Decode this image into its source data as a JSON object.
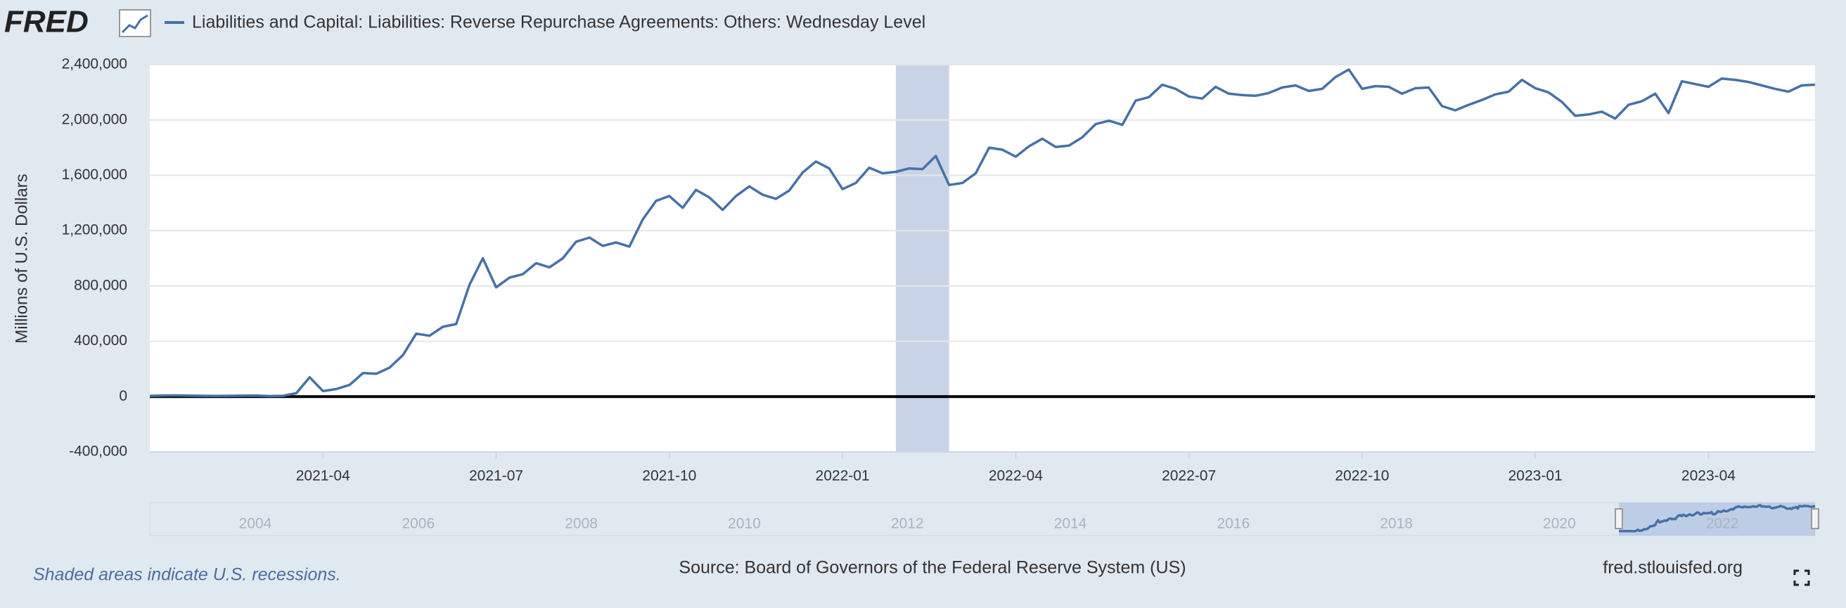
{
  "header": {
    "logo": "FRED"
  },
  "chart_data": {
    "type": "line",
    "series": [
      {
        "name": "Liabilities and Capital: Liabilities: Reverse Repurchase Agreements: Others: Wednesday Level",
        "color": "#4572a7",
        "values": [
          5000,
          8000,
          9000,
          7000,
          6000,
          5000,
          6000,
          7000,
          8000,
          4000,
          6000,
          25000,
          140000,
          40000,
          55000,
          85000,
          170000,
          165000,
          210000,
          300000,
          455000,
          440000,
          505000,
          525000,
          810000,
          1000000,
          790000,
          860000,
          885000,
          965000,
          935000,
          1000000,
          1120000,
          1150000,
          1090000,
          1115000,
          1085000,
          1280000,
          1415000,
          1450000,
          1365000,
          1495000,
          1440000,
          1350000,
          1450000,
          1520000,
          1460000,
          1430000,
          1490000,
          1620000,
          1700000,
          1650000,
          1500000,
          1545000,
          1655000,
          1615000,
          1625000,
          1650000,
          1645000,
          1740000,
          1530000,
          1545000,
          1615000,
          1800000,
          1785000,
          1735000,
          1810000,
          1865000,
          1805000,
          1815000,
          1875000,
          1970000,
          1995000,
          1965000,
          2140000,
          2165000,
          2255000,
          2225000,
          2170000,
          2155000,
          2240000,
          2190000,
          2180000,
          2175000,
          2195000,
          2235000,
          2250000,
          2210000,
          2225000,
          2310000,
          2365000,
          2225000,
          2245000,
          2240000,
          2190000,
          2230000,
          2235000,
          2100000,
          2070000,
          2110000,
          2145000,
          2185000,
          2205000,
          2290000,
          2230000,
          2200000,
          2130000,
          2030000,
          2040000,
          2060000,
          2010000,
          2110000,
          2135000,
          2190000,
          2050000,
          2280000,
          2260000,
          2240000,
          2300000,
          2290000,
          2275000,
          2250000,
          2225000,
          2205000,
          2250000,
          2255000
        ]
      }
    ],
    "x": [
      "2021-01",
      "2021-01",
      "2021-01",
      "2021-01",
      "2021-02",
      "2021-02",
      "2021-02",
      "2021-02",
      "2021-03",
      "2021-03",
      "2021-03",
      "2021-03",
      "2021-03",
      "2021-04",
      "2021-04",
      "2021-04",
      "2021-04",
      "2021-05",
      "2021-05",
      "2021-05",
      "2021-05",
      "2021-06",
      "2021-06",
      "2021-06",
      "2021-06",
      "2021-06",
      "2021-07",
      "2021-07",
      "2021-07",
      "2021-07",
      "2021-08",
      "2021-08",
      "2021-08",
      "2021-08",
      "2021-09",
      "2021-09",
      "2021-09",
      "2021-09",
      "2021-09",
      "2021-10",
      "2021-10",
      "2021-10",
      "2021-10",
      "2021-11",
      "2021-11",
      "2021-11",
      "2021-11",
      "2021-12",
      "2021-12",
      "2021-12",
      "2021-12",
      "2021-12",
      "2022-01",
      "2022-01",
      "2022-01",
      "2022-01",
      "2022-02",
      "2022-02",
      "2022-02",
      "2022-02",
      "2022-03",
      "2022-03",
      "2022-03",
      "2022-03",
      "2022-03",
      "2022-04",
      "2022-04",
      "2022-04",
      "2022-04",
      "2022-05",
      "2022-05",
      "2022-05",
      "2022-05",
      "2022-06",
      "2022-06",
      "2022-06",
      "2022-06",
      "2022-06",
      "2022-07",
      "2022-07",
      "2022-07",
      "2022-07",
      "2022-08",
      "2022-08",
      "2022-08",
      "2022-08",
      "2022-08",
      "2022-09",
      "2022-09",
      "2022-09",
      "2022-09",
      "2022-10",
      "2022-10",
      "2022-10",
      "2022-10",
      "2022-11",
      "2022-11",
      "2022-11",
      "2022-11",
      "2022-11",
      "2022-12",
      "2022-12",
      "2022-12",
      "2022-12",
      "2023-01",
      "2023-01",
      "2023-01",
      "2023-01",
      "2023-02",
      "2023-02",
      "2023-02",
      "2023-02",
      "2023-03",
      "2023-03",
      "2023-03",
      "2023-03",
      "2023-03",
      "2023-04",
      "2023-04",
      "2023-04",
      "2023-04",
      "2023-05",
      "2023-05",
      "2023-05",
      "2023-05",
      "2023-05"
    ],
    "xticks": [
      "2021-04",
      "2021-07",
      "2021-10",
      "2022-01",
      "2022-04",
      "2022-07",
      "2022-10",
      "2023-01",
      "2023-04"
    ],
    "ylim": [
      -400000,
      2400000
    ],
    "yticks": [
      {
        "value": -400000,
        "label": "-400,000"
      },
      0,
      {
        "value": 400000,
        "label": "400,000"
      },
      {
        "value": 800000,
        "label": "800,000"
      },
      {
        "value": 1200000,
        "label": "1,200,000"
      },
      {
        "value": 1600000,
        "label": "1,600,000"
      },
      {
        "value": 2000000,
        "label": "2,000,000"
      },
      {
        "value": 2400000,
        "label": "2,400,000"
      }
    ],
    "y_label": "Millions of U.S. Dollars",
    "grid": true,
    "zero_line_color": "#000000",
    "recessions": [
      {
        "start": "2022-02",
        "end": "2022-03",
        "color": "#c9d3e8"
      }
    ]
  },
  "navigator": {
    "labels": [
      "2004",
      "2006",
      "2008",
      "2010",
      "2012",
      "2014",
      "2016",
      "2018",
      "2020",
      "2022"
    ]
  },
  "footer": {
    "note": "Shaded areas indicate U.S. recessions.",
    "source": "Source: Board of Governors of the Federal Reserve System (US)",
    "site": "fred.stlouisfed.org"
  }
}
